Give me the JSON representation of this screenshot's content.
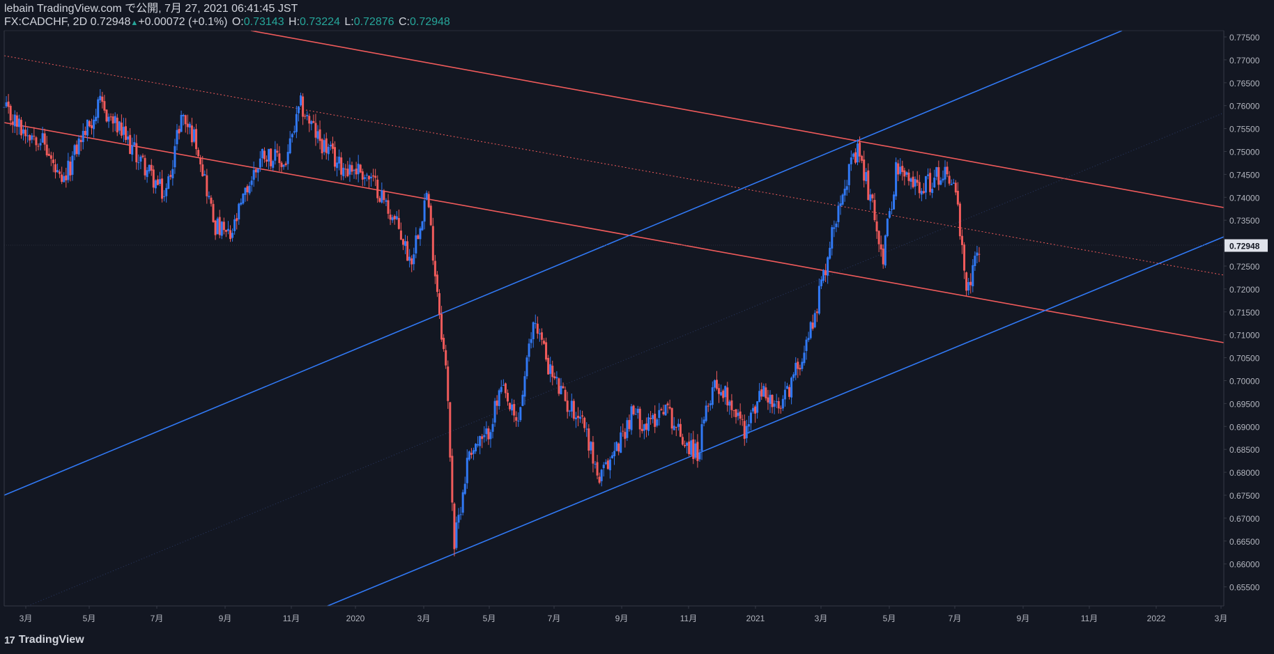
{
  "header": {
    "title": "lebain TradingView.com で公開, 7月 27, 2021 06:41:45 JST",
    "symbol": "FX:CADCHF, 2D",
    "last": "0.72948",
    "change": "+0.00072 (+0.1%)",
    "up_icon": "triangle-up-icon",
    "open_label": "O:",
    "open": "0.73143",
    "high_label": "H:",
    "high": "0.73224",
    "low_label": "L:",
    "low": "0.72876",
    "close_label": "C:",
    "close": "0.72948"
  },
  "footer": {
    "logo_icon": "tradingview-logo-icon",
    "logo_text": "17",
    "brand": "TradingView"
  },
  "colors": {
    "background": "#131722",
    "up": "#3179f5",
    "down": "#f15b5b",
    "trend_red": "#f15b5b",
    "trend_blue": "#3179f5",
    "axis_text": "#b2b5be",
    "last_price_bg": "#e0e3eb"
  },
  "chart_data": {
    "type": "candlestick",
    "symbol": "FX:CADCHF",
    "interval": "2D",
    "ylim": [
      0.65,
      0.7775
    ],
    "y_ticks": [
      "0.77500",
      "0.77000",
      "0.76500",
      "0.76000",
      "0.75500",
      "0.75000",
      "0.74500",
      "0.74000",
      "0.73500",
      "0.73000",
      "0.72500",
      "0.72000",
      "0.71500",
      "0.71000",
      "0.70500",
      "0.70000",
      "0.69500",
      "0.69000",
      "0.68500",
      "0.68000",
      "0.67500",
      "0.67000",
      "0.66500",
      "0.66000",
      "0.65500"
    ],
    "x_ticks": [
      "3月",
      "5月",
      "7月",
      "9月",
      "11月",
      "2020",
      "3月",
      "5月",
      "7月",
      "9月",
      "11月",
      "2021",
      "3月",
      "5月",
      "7月",
      "9月",
      "11月",
      "2022",
      "3月"
    ],
    "last_price_label": "0.72948",
    "close_path": [
      [
        "2019-01-25",
        0.759
      ],
      [
        "2019-02-10",
        0.755
      ],
      [
        "2019-03-01",
        0.753
      ],
      [
        "2019-03-20",
        0.742
      ],
      [
        "2019-04-05",
        0.752
      ],
      [
        "2019-04-25",
        0.76
      ],
      [
        "2019-05-15",
        0.754
      ],
      [
        "2019-06-05",
        0.747
      ],
      [
        "2019-06-25",
        0.74
      ],
      [
        "2019-07-10",
        0.758
      ],
      [
        "2019-07-25",
        0.752
      ],
      [
        "2019-08-10",
        0.734
      ],
      [
        "2019-08-25",
        0.731
      ],
      [
        "2019-09-10",
        0.742
      ],
      [
        "2019-09-25",
        0.75
      ],
      [
        "2019-10-15",
        0.747
      ],
      [
        "2019-10-30",
        0.76
      ],
      [
        "2019-11-15",
        0.753
      ],
      [
        "2019-12-05",
        0.747
      ],
      [
        "2019-12-25",
        0.746
      ],
      [
        "2020-01-10",
        0.742
      ],
      [
        "2020-01-30",
        0.733
      ],
      [
        "2020-02-10",
        0.726
      ],
      [
        "2020-02-25",
        0.741
      ],
      [
        "2020-03-05",
        0.722
      ],
      [
        "2020-03-15",
        0.7
      ],
      [
        "2020-03-22",
        0.664
      ],
      [
        "2020-04-05",
        0.685
      ],
      [
        "2020-04-20",
        0.687
      ],
      [
        "2020-05-05",
        0.698
      ],
      [
        "2020-05-20",
        0.69
      ],
      [
        "2020-06-05",
        0.714
      ],
      [
        "2020-06-20",
        0.702
      ],
      [
        "2020-07-05",
        0.695
      ],
      [
        "2020-07-20",
        0.692
      ],
      [
        "2020-08-05",
        0.678
      ],
      [
        "2020-08-20",
        0.685
      ],
      [
        "2020-09-05",
        0.693
      ],
      [
        "2020-09-20",
        0.69
      ],
      [
        "2020-10-05",
        0.695
      ],
      [
        "2020-10-20",
        0.688
      ],
      [
        "2020-11-05",
        0.684
      ],
      [
        "2020-11-20",
        0.7
      ],
      [
        "2020-12-05",
        0.696
      ],
      [
        "2020-12-20",
        0.689
      ],
      [
        "2021-01-05",
        0.698
      ],
      [
        "2021-01-20",
        0.693
      ],
      [
        "2021-02-05",
        0.702
      ],
      [
        "2021-02-20",
        0.712
      ],
      [
        "2021-03-05",
        0.725
      ],
      [
        "2021-03-20",
        0.742
      ],
      [
        "2021-04-05",
        0.75
      ],
      [
        "2021-04-20",
        0.736
      ],
      [
        "2021-04-28",
        0.727
      ],
      [
        "2021-05-10",
        0.746
      ],
      [
        "2021-05-25",
        0.743
      ],
      [
        "2021-06-10",
        0.743
      ],
      [
        "2021-06-25",
        0.746
      ],
      [
        "2021-07-05",
        0.742
      ],
      [
        "2021-07-15",
        0.718
      ],
      [
        "2021-07-27",
        0.7295
      ]
    ]
  }
}
